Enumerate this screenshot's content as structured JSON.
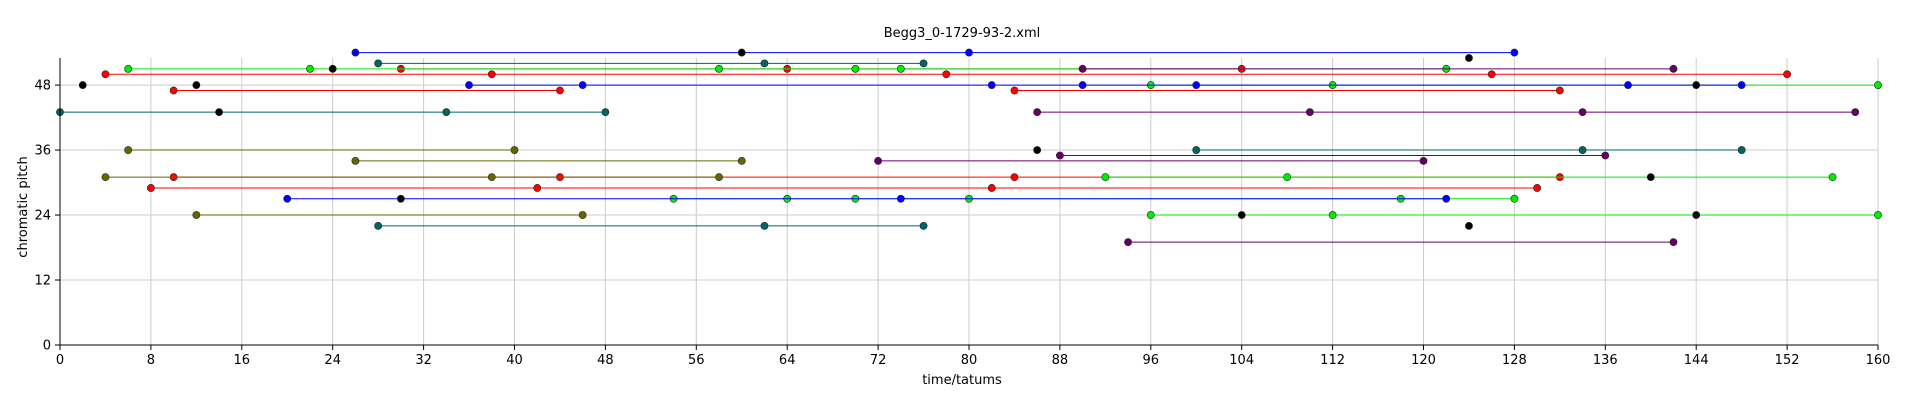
{
  "chart_data": {
    "type": "scatter",
    "title": "Begg3_0-1729-93-2.xml",
    "xlabel": "time/tatums",
    "ylabel": "chromatic pitch",
    "xlim": [
      0,
      160
    ],
    "ylim": [
      0,
      53
    ],
    "xticks": [
      0,
      8,
      16,
      24,
      32,
      40,
      48,
      56,
      64,
      72,
      80,
      88,
      96,
      104,
      112,
      120,
      128,
      136,
      144,
      152,
      160
    ],
    "yticks": [
      0,
      12,
      24,
      36,
      48
    ],
    "grid": true,
    "legend": "none",
    "colors": {
      "red": "#ff0000",
      "green": "#00ee00",
      "blue": "#0000ff",
      "teal": "#006666",
      "olive": "#666600",
      "purple": "#660066",
      "black": "#000000"
    },
    "series": [
      {
        "color": "red",
        "segments": [
          {
            "x": [
              4,
              38,
              78,
              126,
              152
            ],
            "y": 50
          },
          {
            "x": [
              10,
              44
            ],
            "y": 47
          },
          {
            "x": [
              30,
              64,
              104
            ],
            "y": 51
          },
          {
            "x": [
              84,
              132
            ],
            "y": 47
          },
          {
            "x": [
              10,
              44,
              84,
              132
            ],
            "y": 31
          },
          {
            "x": [
              8,
              42,
              82,
              130
            ],
            "y": 29
          }
        ]
      },
      {
        "color": "green",
        "segments": [
          {
            "x": [
              6,
              22,
              58,
              70,
              74,
              122
            ],
            "y": 51
          },
          {
            "x": [
              96,
              112,
              160
            ],
            "y": 48
          },
          {
            "x": [
              54,
              64,
              70,
              80,
              118,
              128
            ],
            "y": 27
          },
          {
            "x": [
              92,
              108,
              156
            ],
            "y": 31
          },
          {
            "x": [
              96,
              112,
              160
            ],
            "y": 24
          }
        ]
      },
      {
        "color": "blue",
        "segments": [
          {
            "x": [
              26,
              80,
              128
            ],
            "y": 54
          },
          {
            "x": [
              36,
              46,
              82,
              90,
              100,
              138,
              148
            ],
            "y": 48
          },
          {
            "x": [
              20,
              74,
              122
            ],
            "y": 27
          }
        ]
      },
      {
        "color": "teal",
        "segments": [
          {
            "x": [
              0,
              34,
              48
            ],
            "y": 43
          },
          {
            "x": [
              28,
              62,
              76
            ],
            "y": 52
          },
          {
            "x": [
              100,
              134,
              148
            ],
            "y": 36
          },
          {
            "x": [
              28,
              62,
              76
            ],
            "y": 22
          }
        ]
      },
      {
        "color": "olive",
        "segments": [
          {
            "x": [
              6,
              40
            ],
            "y": 36
          },
          {
            "x": [
              4,
              38,
              58
            ],
            "y": 31
          },
          {
            "x": [
              26,
              60
            ],
            "y": 34
          },
          {
            "x": [
              12,
              46
            ],
            "y": 24
          }
        ]
      },
      {
        "color": "purple",
        "segments": [
          {
            "x": [
              72,
              120
            ],
            "y": 34
          },
          {
            "x": [
              86,
              110,
              134,
              158
            ],
            "y": 43
          },
          {
            "x": [
              88,
              136
            ],
            "y": 35
          },
          {
            "x": [
              90,
              142
            ],
            "y": 51
          },
          {
            "x": [
              94,
              142
            ],
            "y": 19
          }
        ]
      },
      {
        "color": "black",
        "segments": [
          {
            "x": [
              2
            ],
            "y": 48
          },
          {
            "x": [
              12
            ],
            "y": 48
          },
          {
            "x": [
              14
            ],
            "y": 43
          },
          {
            "x": [
              24
            ],
            "y": 51
          },
          {
            "x": [
              60
            ],
            "y": 54
          },
          {
            "x": [
              124
            ],
            "y": 53
          },
          {
            "x": [
              144
            ],
            "y": 48
          },
          {
            "x": [
              86
            ],
            "y": 36
          },
          {
            "x": [
              30
            ],
            "y": 27
          },
          {
            "x": [
              140
            ],
            "y": 31
          },
          {
            "x": [
              104
            ],
            "y": 24
          },
          {
            "x": [
              144
            ],
            "y": 24
          },
          {
            "x": [
              124
            ],
            "y": 22
          }
        ]
      }
    ]
  }
}
